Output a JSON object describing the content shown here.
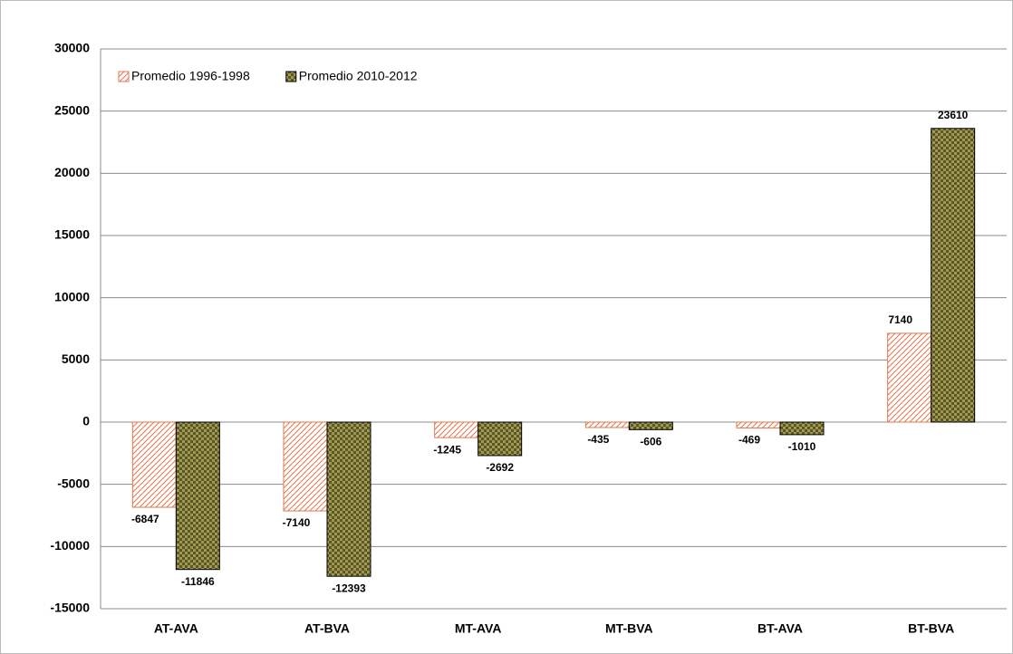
{
  "chart_data": {
    "type": "bar",
    "categories": [
      "AT-AVA",
      "AT-BVA",
      "MT-AVA",
      "MT-BVA",
      "BT-AVA",
      "BT-BVA"
    ],
    "series": [
      {
        "name": "Promedio 1996-1998",
        "color": "#e07850",
        "values": [
          -6847,
          -7140,
          -1245,
          -435,
          -469,
          7140
        ]
      },
      {
        "name": "Promedio 2010-2012",
        "color": "#a09a50",
        "values": [
          -11846,
          -12393,
          -2692,
          -606,
          -1010,
          23610
        ]
      }
    ],
    "ylim": [
      -15000,
      30000
    ],
    "yticks": [
      -15000,
      -10000,
      -5000,
      0,
      5000,
      10000,
      15000,
      20000,
      25000,
      30000
    ],
    "grid": true,
    "legend": "upper left"
  }
}
